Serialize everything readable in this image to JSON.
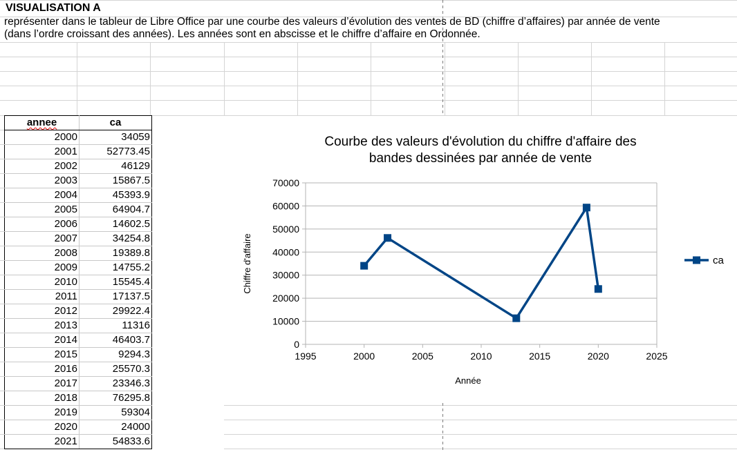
{
  "heading": "VISUALISATION A",
  "instructions": [
    "représenter dans le tableur de Libre Office par une courbe des valeurs d’évolution des ventes de BD (chiffre d’affaires) par année de vente",
    "(dans l’ordre croissant des années). Les années sont en abscisse et le chiffre d’affaire en Ordonnée."
  ],
  "table": {
    "columns": [
      "annee",
      "ca"
    ],
    "rows": [
      [
        "2000",
        "34059"
      ],
      [
        "2001",
        "52773.45"
      ],
      [
        "2002",
        "46129"
      ],
      [
        "2003",
        "15867.5"
      ],
      [
        "2004",
        "45393.9"
      ],
      [
        "2005",
        "64904.7"
      ],
      [
        "2006",
        "14602.5"
      ],
      [
        "2007",
        "34254.8"
      ],
      [
        "2008",
        "19389.8"
      ],
      [
        "2009",
        "14755.2"
      ],
      [
        "2010",
        "15545.4"
      ],
      [
        "2011",
        "17137.5"
      ],
      [
        "2012",
        "29922.4"
      ],
      [
        "2013",
        "11316"
      ],
      [
        "2014",
        "46403.7"
      ],
      [
        "2015",
        "9294.3"
      ],
      [
        "2016",
        "25570.3"
      ],
      [
        "2017",
        "23346.3"
      ],
      [
        "2018",
        "76295.8"
      ],
      [
        "2019",
        "59304"
      ],
      [
        "2020",
        "24000"
      ],
      [
        "2021",
        "54833.6"
      ]
    ]
  },
  "chart_data": {
    "type": "line",
    "title": [
      "Courbe des valeurs d'évolution du chiffre d'affaire des",
      "bandes dessinées par année de vente"
    ],
    "xlabel": "Année",
    "ylabel": "Chiffre d'affaire",
    "xlim": [
      1995,
      2025
    ],
    "ylim": [
      0,
      70000
    ],
    "x_ticks": [
      1995,
      2000,
      2005,
      2010,
      2015,
      2020,
      2025
    ],
    "y_ticks": [
      0,
      10000,
      20000,
      30000,
      40000,
      50000,
      60000,
      70000
    ],
    "grid": true,
    "legend": "right",
    "series": [
      {
        "name": "ca",
        "color": "#004586",
        "points": [
          [
            2000,
            34059
          ],
          [
            2002,
            46129
          ],
          [
            2013,
            11316
          ],
          [
            2019,
            59304
          ],
          [
            2020,
            24000
          ]
        ]
      }
    ]
  }
}
